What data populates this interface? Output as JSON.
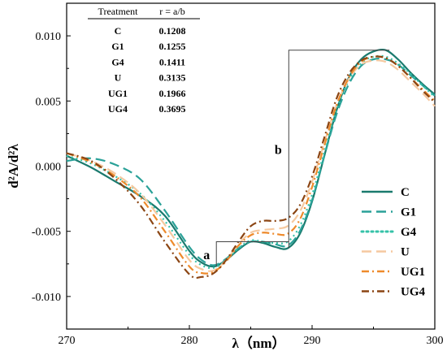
{
  "chart_data": {
    "type": "line",
    "title": "",
    "xlabel": "λ（nm）",
    "ylabel": "d²A/d²λ",
    "xlim": [
      270,
      300
    ],
    "ylim": [
      -0.0125,
      0.0125
    ],
    "x_ticks": [
      270,
      280,
      290,
      300
    ],
    "x_tick_labels": [
      "270",
      "280",
      "290",
      "300"
    ],
    "y_ticks": [
      -0.01,
      -0.005,
      0.0,
      0.005,
      0.01
    ],
    "y_tick_labels": [
      "-0.010",
      "-0.005",
      "0.000",
      "0.005",
      "0.010"
    ],
    "grid": false,
    "legend_position": "bottom-right",
    "annotations": [
      {
        "label": "a",
        "x": 282.2,
        "y_low": -0.0077,
        "y_high": -0.0058
      },
      {
        "label": "b",
        "x": 288.1,
        "y_low": -0.0063,
        "y_high": 0.0089
      }
    ],
    "table": {
      "headers": [
        "Treatment",
        "r = a/b"
      ],
      "rows": [
        [
          "C",
          "0.1208"
        ],
        [
          "G1",
          "0.1255"
        ],
        [
          "G4",
          "0.1411"
        ],
        [
          "U",
          "0.3135"
        ],
        [
          "UG1",
          "0.1966"
        ],
        [
          "UG4",
          "0.3695"
        ]
      ]
    },
    "series": [
      {
        "name": "C",
        "color": "#1a7a6e",
        "dash": "solid",
        "x": [
          270,
          272,
          274,
          276,
          278,
          280,
          281,
          282,
          283,
          284,
          285,
          286,
          287,
          288,
          289,
          290,
          291,
          292,
          293,
          294,
          295,
          296,
          297,
          298,
          299,
          300
        ],
        "y": [
          0.0008,
          -0.0001,
          -0.0012,
          -0.0023,
          -0.0038,
          -0.0065,
          -0.0074,
          -0.0077,
          -0.0072,
          -0.0064,
          -0.0058,
          -0.0059,
          -0.0062,
          -0.0063,
          -0.0052,
          -0.0027,
          0.0008,
          0.0043,
          0.0068,
          0.0082,
          0.0088,
          0.0089,
          0.0082,
          0.0072,
          0.0063,
          0.0055
        ]
      },
      {
        "name": "G1",
        "color": "#2aa198",
        "dash": "long-dash",
        "x": [
          270,
          272,
          274,
          276,
          278,
          280,
          281,
          282,
          283,
          284,
          285,
          286,
          287,
          288,
          289,
          290,
          291,
          292,
          293,
          294,
          295,
          296,
          297,
          298,
          299,
          300
        ],
        "y": [
          0.0004,
          0.0006,
          0.0001,
          -0.001,
          -0.0034,
          -0.0062,
          -0.0072,
          -0.0076,
          -0.0071,
          -0.0063,
          -0.0058,
          -0.0058,
          -0.006,
          -0.0061,
          -0.005,
          -0.0026,
          0.0008,
          0.004,
          0.0063,
          0.0077,
          0.0082,
          0.0082,
          0.0078,
          0.007,
          0.0062,
          0.0054
        ]
      },
      {
        "name": "G4",
        "color": "#35c2a8",
        "dash": "dot",
        "x": [
          270,
          272,
          274,
          276,
          278,
          280,
          281,
          282,
          283,
          284,
          285,
          286,
          287,
          288,
          289,
          290,
          291,
          292,
          293,
          294,
          295,
          296,
          297,
          298,
          299,
          300
        ],
        "y": [
          0.0008,
          0.0002,
          -0.0008,
          -0.0021,
          -0.0042,
          -0.0068,
          -0.0076,
          -0.0078,
          -0.0072,
          -0.0063,
          -0.0057,
          -0.0058,
          -0.0059,
          -0.0058,
          -0.0046,
          -0.0022,
          0.0011,
          0.0043,
          0.0066,
          0.0079,
          0.0084,
          0.0084,
          0.0079,
          0.0071,
          0.0062,
          0.0053
        ]
      },
      {
        "name": "U",
        "color": "#f5c9a0",
        "dash": "long-dash",
        "x": [
          270,
          272,
          274,
          276,
          278,
          280,
          281,
          282,
          283,
          284,
          285,
          286,
          287,
          288,
          289,
          290,
          291,
          292,
          293,
          294,
          295,
          296,
          297,
          298,
          299,
          300
        ],
        "y": [
          0.001,
          0.0004,
          -0.0006,
          -0.0021,
          -0.0045,
          -0.0072,
          -0.0079,
          -0.008,
          -0.0072,
          -0.006,
          -0.0051,
          -0.0049,
          -0.0048,
          -0.0046,
          -0.0035,
          -0.0012,
          0.0018,
          0.0047,
          0.0067,
          0.0078,
          0.0081,
          0.008,
          0.0074,
          0.0065,
          0.0056,
          0.0046
        ]
      },
      {
        "name": "UG1",
        "color": "#ee8a2b",
        "dash": "dash-dot",
        "x": [
          270,
          272,
          274,
          276,
          278,
          280,
          281,
          282,
          283,
          284,
          285,
          286,
          287,
          288,
          289,
          290,
          291,
          292,
          293,
          294,
          295,
          296,
          297,
          298,
          299,
          300
        ],
        "y": [
          0.001,
          0.0003,
          -0.0008,
          -0.0024,
          -0.005,
          -0.0077,
          -0.0082,
          -0.0081,
          -0.0073,
          -0.0061,
          -0.0053,
          -0.0051,
          -0.0052,
          -0.0052,
          -0.0041,
          -0.0016,
          0.0016,
          0.0047,
          0.0068,
          0.008,
          0.0084,
          0.0083,
          0.0077,
          0.0068,
          0.0059,
          0.005
        ]
      },
      {
        "name": "UG4",
        "color": "#8b4513",
        "dash": "dash-dot",
        "x": [
          270,
          272,
          274,
          276,
          278,
          280,
          281,
          282,
          283,
          284,
          285,
          286,
          287,
          288,
          289,
          290,
          291,
          292,
          293,
          294,
          295,
          296,
          297,
          298,
          299,
          300
        ],
        "y": [
          0.001,
          0.0004,
          -0.001,
          -0.003,
          -0.0058,
          -0.0083,
          -0.0085,
          -0.0082,
          -0.0072,
          -0.0058,
          -0.0046,
          -0.0042,
          -0.0042,
          -0.004,
          -0.003,
          -0.0008,
          0.0022,
          0.0052,
          0.0071,
          0.0081,
          0.0084,
          0.0083,
          0.0077,
          0.0068,
          0.0058,
          0.0049
        ]
      }
    ]
  }
}
